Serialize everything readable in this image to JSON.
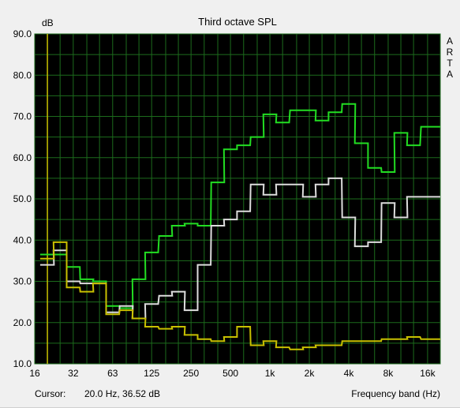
{
  "chart_data": {
    "type": "line",
    "title": "Third octave SPL",
    "ylabel": "dB",
    "xlabel": "Frequency band (Hz)",
    "ylim": [
      10,
      90
    ],
    "xlim_hz": [
      16,
      20000
    ],
    "x_scale": "log",
    "grid": true,
    "legend": "none",
    "side_label": [
      "A",
      "R",
      "T",
      "A"
    ],
    "x_tick_labels": [
      "16",
      "32",
      "63",
      "125",
      "250",
      "500",
      "1k",
      "2k",
      "4k",
      "8k",
      "16k"
    ],
    "x_tick_values": [
      16,
      31.5,
      63,
      125,
      250,
      500,
      1000,
      2000,
      4000,
      8000,
      16000
    ],
    "y_tick_labels": [
      "10.0",
      "20.0",
      "30.0",
      "40.0",
      "50.0",
      "60.0",
      "70.0",
      "80.0",
      "90.0"
    ],
    "y_tick_values": [
      10,
      20,
      30,
      40,
      50,
      60,
      70,
      80,
      90
    ],
    "x_bands": [
      20,
      25,
      31.5,
      40,
      50,
      63,
      80,
      100,
      125,
      160,
      200,
      250,
      315,
      400,
      500,
      630,
      800,
      1000,
      1250,
      1600,
      2000,
      2500,
      3150,
      4000,
      5000,
      6300,
      8000,
      10000,
      12500,
      16000,
      20000
    ],
    "series": [
      {
        "color": "#22dd22",
        "values": [
          36.5,
          36.5,
          33.5,
          30.5,
          30,
          24,
          23.5,
          30.5,
          37,
          41,
          43.5,
          44,
          43.5,
          54,
          62,
          63,
          65,
          70.5,
          68.5,
          71.5,
          71.5,
          69,
          71,
          73,
          63.5,
          57.5,
          56.5,
          66,
          63,
          67.5,
          67.5
        ]
      },
      {
        "color": "#dddddd",
        "values": [
          34,
          37.5,
          30,
          29.5,
          29.5,
          22.5,
          24,
          21,
          24.5,
          26.5,
          27.5,
          23,
          34,
          43.5,
          45,
          47,
          53.5,
          51,
          53.5,
          53.5,
          50.5,
          53.5,
          55,
          45.5,
          38.5,
          39.5,
          49,
          45.5,
          50.5,
          50.5,
          50.5
        ]
      },
      {
        "color": "#c8c000",
        "values": [
          35.5,
          39.5,
          28.5,
          27.5,
          29.5,
          22,
          23,
          21,
          19,
          18.5,
          19,
          17,
          16,
          15.5,
          16.5,
          19,
          14.5,
          15.5,
          14,
          13.5,
          14,
          14.5,
          14.5,
          15.5,
          15.5,
          15.5,
          16,
          16,
          16.5,
          16,
          16
        ]
      }
    ],
    "cursor_line_hz": 20
  },
  "status": {
    "cursor_label": "Cursor:",
    "cursor_value": "20.0 Hz, 36.52 dB",
    "band_label": "Frequency band (Hz)"
  },
  "colors": {
    "plot_background": "#000000",
    "grid": "#1c6b1c",
    "cursor_line": "#c8c000",
    "page_background": "#f0f0f0"
  }
}
